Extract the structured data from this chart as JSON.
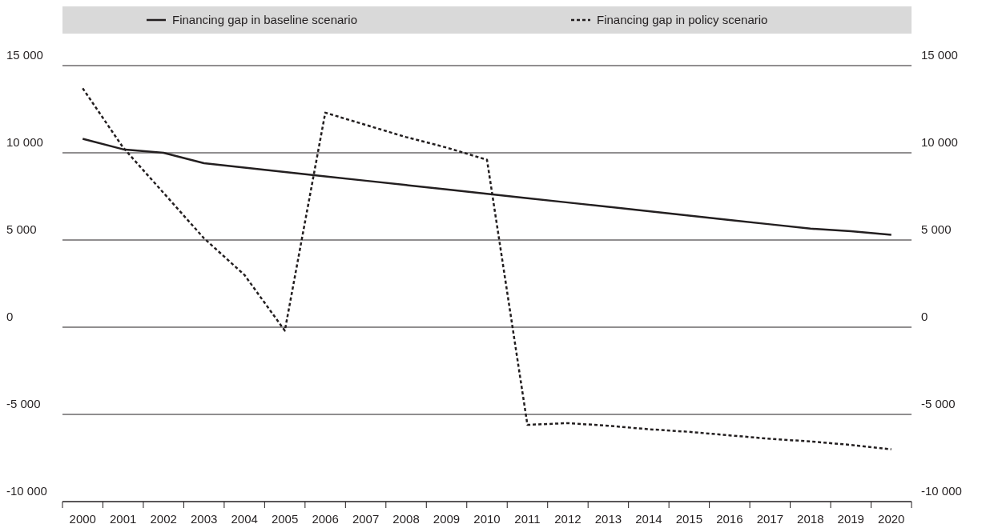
{
  "chart_data": {
    "type": "line",
    "categories": [
      "2000",
      "2001",
      "2002",
      "2003",
      "2004",
      "2005",
      "2006",
      "2007",
      "2008",
      "2009",
      "2010",
      "2011",
      "2012",
      "2013",
      "2014",
      "2015",
      "2016",
      "2017",
      "2018",
      "2019",
      "2020"
    ],
    "series": [
      {
        "name": "Financing gap in baseline scenario",
        "color": "#231f20",
        "line_style": "solid",
        "values": [
          10800,
          10200,
          10000,
          9400,
          9150,
          8900,
          8650,
          8400,
          8150,
          7900,
          7650,
          7400,
          7150,
          6900,
          6650,
          6400,
          6150,
          5900,
          5650,
          5500,
          5300
        ]
      },
      {
        "name": "Financing gap in policy scenario",
        "color": "#231f20",
        "line_style": "dotted",
        "values": [
          13700,
          10300,
          7700,
          5100,
          3000,
          -200,
          12300,
          11600,
          10900,
          10300,
          9600,
          -5600,
          -5500,
          -5650,
          -5850,
          -6000,
          -6200,
          -6400,
          -6550,
          -6750,
          -7000
        ]
      }
    ],
    "ylim": [
      -10000,
      15000
    ],
    "yticks": [
      {
        "value": -10000,
        "label": "-10 000"
      },
      {
        "value": -5000,
        "label": "-5 000"
      },
      0,
      {
        "value": 5000,
        "label": "5 000"
      },
      {
        "value": 10000,
        "label": "10 000"
      },
      {
        "value": 15000,
        "label": "15 000"
      }
    ],
    "y2lim": [
      -10000,
      15000
    ],
    "y2ticks": [
      {
        "value": -10000,
        "label": "-10 000"
      },
      {
        "value": -5000,
        "label": "-5 000"
      },
      0,
      {
        "value": 5000,
        "label": "5 000"
      },
      {
        "value": 10000,
        "label": "10 000"
      },
      {
        "value": 15000,
        "label": "15 000"
      }
    ],
    "grid": "y",
    "legend": "top",
    "marker": "none"
  }
}
